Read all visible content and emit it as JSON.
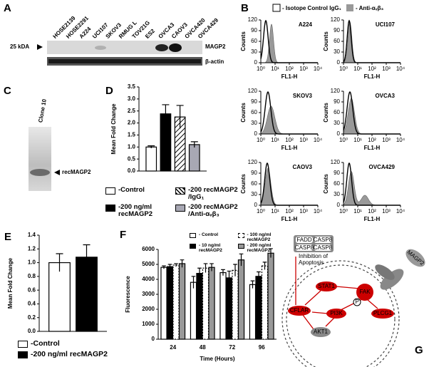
{
  "panels": {
    "A": {
      "label": "A",
      "lanes": [
        "HOSE2139",
        "HOSE2291",
        "A224",
        "UCI107",
        "SKOV3",
        "RMUG L",
        "TOV21G",
        "ES2",
        "OVCA3",
        "CAOV3",
        "OVCA420",
        "OVCA429"
      ],
      "marker": "25 kDA",
      "bands": [
        "MAGP2",
        "β-actin"
      ]
    },
    "B": {
      "label": "B",
      "legend": [
        "- Isotope Control IgG₁",
        "- Anti-αᵥβ₃"
      ],
      "plots": [
        "A224",
        "UCI107",
        "SKOV3",
        "OVCA3",
        "CAOV3",
        "OVCA429"
      ],
      "y_label": "Counts",
      "x_label": "FL1-H",
      "yticks": [
        0,
        30,
        60,
        90,
        120
      ],
      "xticks": [
        "10⁰",
        "10¹",
        "10²",
        "10³",
        "10⁴"
      ]
    },
    "C": {
      "label": "C",
      "clone": "Clone 10",
      "band": "recMAGP2"
    },
    "G": {
      "label": "G",
      "complex": [
        "FADD",
        "CASP8",
        "CASP8",
        "CASP8"
      ],
      "note": "Inhibition of Apoptosis",
      "nodes": [
        "STAT1",
        "FAK",
        "P",
        "CFLAR",
        "PI3K",
        "PLCG1",
        "AKT1",
        "MAGP2"
      ]
    }
  },
  "chart_data": [
    {
      "type": "bar",
      "label": "D",
      "y_label": "Mean Fold Change",
      "categories": [
        null
      ],
      "ylim": [
        0,
        3.5
      ],
      "yticks": [
        {
          "value": 0,
          "label": "0.0"
        },
        0.5,
        {
          "value": 1,
          "label": "1.0"
        },
        1.5,
        {
          "value": 2,
          "label": "2.0"
        },
        2.5,
        {
          "value": 3,
          "label": "3.0"
        },
        3.5
      ],
      "legend": "bottom",
      "series": [
        {
          "name": "-Control",
          "color": "#ffffff",
          "values": [
            1.0
          ],
          "errors": [
            0.05
          ]
        },
        {
          "name": "-200 ng/ml recMAGP2",
          "color": "#000000",
          "values": [
            2.38
          ],
          "errors": [
            0.38
          ]
        },
        {
          "name": "-200 recMAGP2 /IgG₁",
          "color": "#ffffff",
          "pattern": "hatch",
          "values": [
            2.25
          ],
          "errors": [
            0.48
          ]
        },
        {
          "name": "-200 recMAGP2 /Anti-αᵥβ₃",
          "color": "#a8a8b4",
          "values": [
            1.1
          ],
          "errors": [
            0.12
          ]
        }
      ]
    },
    {
      "type": "bar",
      "label": "E",
      "y_label": "Mean Fold Change",
      "categories": [
        null
      ],
      "ylim": [
        0,
        1.4
      ],
      "yticks": [
        {
          "value": 0,
          "label": "0.0"
        },
        0.2,
        0.4,
        0.6,
        0.8,
        {
          "value": 1,
          "label": "1.0"
        },
        1.2,
        1.4
      ],
      "legend": "bottom",
      "series": [
        {
          "name": "-Control",
          "color": "#ffffff",
          "values": [
            1.0
          ],
          "errors": [
            0.13
          ]
        },
        {
          "name": "-200 ng/ml recMAGP2",
          "color": "#000000",
          "values": [
            1.08
          ],
          "errors": [
            0.18
          ]
        }
      ]
    },
    {
      "type": "bar",
      "label": "F",
      "y_label": "Fluorescence",
      "x_label": "Time (Hours)",
      "categories": [
        "24",
        "48",
        "72",
        "96"
      ],
      "ylim": [
        0,
        6000
      ],
      "yticks": [
        0,
        1000,
        2000,
        3000,
        4000,
        5000,
        6000
      ],
      "legend": "top",
      "series": [
        {
          "name": "- Control",
          "color": "#ffffff",
          "values": [
            4800,
            3800,
            4450,
            3650
          ],
          "errors": [
            100,
            400,
            200,
            250
          ]
        },
        {
          "name": "- 10 ng/ml recMAGP2",
          "color": "#000000",
          "values": [
            4850,
            4400,
            4100,
            4200
          ],
          "errors": [
            150,
            350,
            450,
            300
          ]
        },
        {
          "name": "- 100 ng/ml recMAGP2",
          "color": "#ffffff",
          "pattern": "dashed",
          "values": [
            4950,
            4750,
            4600,
            4900
          ],
          "errors": [
            100,
            300,
            400,
            250
          ]
        },
        {
          "name": "- 200 ng/ml recMAGP2",
          "color": "#999999",
          "values": [
            5050,
            4800,
            5300,
            5750
          ],
          "errors": [
            250,
            250,
            400,
            300
          ]
        }
      ]
    }
  ]
}
